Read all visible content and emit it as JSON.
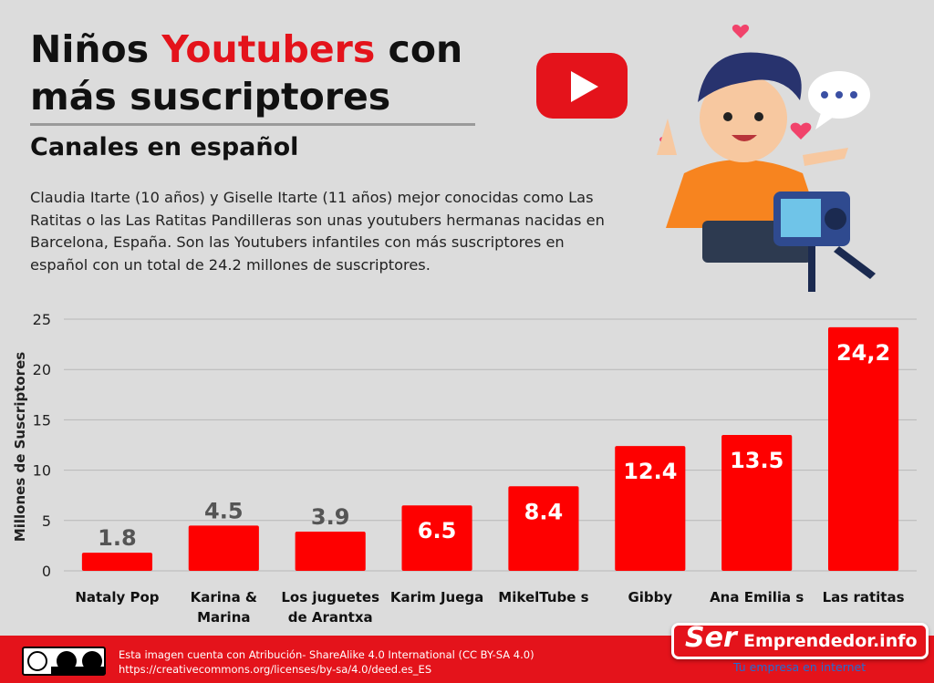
{
  "header": {
    "title_part1": "Niños ",
    "title_highlight": "Youtubers",
    "title_part2": " con más suscriptores",
    "subtitle": "Canales en español",
    "description": "Claudia Itarte (10 años) y Giselle Itarte (11 años) mejor conocidas como Las Ratitas o las Las Ratitas Pandilleras son unas youtubers hermanas nacidas en Barcelona, España. Son las Youtubers infantiles con más suscriptores en español con un total de 24.2 millones de suscriptores."
  },
  "chart_data": {
    "type": "bar",
    "title": "",
    "xlabel": "",
    "ylabel": "Millones de Suscriptores",
    "ylim": [
      0,
      25
    ],
    "yticks": [
      0,
      5,
      10,
      15,
      20,
      25
    ],
    "grid": true,
    "categories": [
      [
        "Nataly Pop"
      ],
      [
        "Karina &",
        "Marina"
      ],
      [
        "Los juguetes",
        "de Arantxa"
      ],
      [
        "Karim Juega"
      ],
      [
        "MikelTube s"
      ],
      [
        "Gibby"
      ],
      [
        "Ana Emilia s"
      ],
      [
        "Las ratitas"
      ]
    ],
    "values": [
      1.8,
      4.5,
      3.9,
      6.5,
      8.4,
      12.4,
      13.5,
      24.2
    ],
    "value_labels": [
      "1.8",
      "4.5",
      "3.9",
      "6.5",
      "8.4",
      "12.4",
      "13.5",
      "24,2"
    ],
    "bar_color": "#fe0000"
  },
  "footer": {
    "license_line1": "Esta imagen cuenta con Atribución- ShareAlike 4.0 International (CC BY-SA 4.0)",
    "license_line2": "https://creativecommons.org/licenses/by-sa/4.0/deed.es_ES",
    "logo_ser": "Ser",
    "logo_rest": "Emprendedor.info",
    "logo_tagline": "Tu empresa en internet",
    "accent_color": "#e4131b"
  }
}
